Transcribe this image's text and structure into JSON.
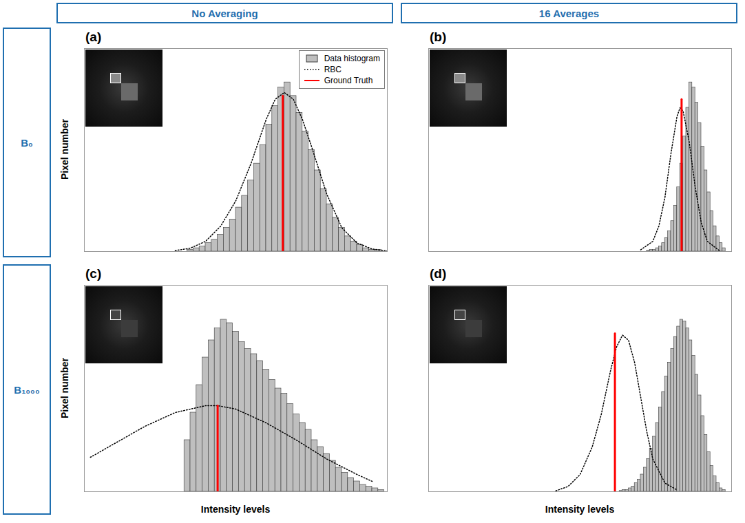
{
  "column_titles": [
    "No Averaging",
    "16 Averages"
  ],
  "row_titles": [
    "B₀",
    "B₁₀₀₀"
  ],
  "chart_data": [
    {
      "type": "histogram",
      "title": "(a)",
      "ylabel": "Pixel number",
      "xlim": [
        0,
        100
      ],
      "ylim": [
        0,
        120
      ],
      "tick_labels": false,
      "legend": "top-right",
      "series": [
        {
          "name": "Data histogram",
          "type": "bar",
          "color": "#bfbfbf",
          "bins": [
            34,
            36,
            38,
            40,
            42,
            44,
            46,
            48,
            50,
            52,
            54,
            56,
            58,
            60,
            62,
            64,
            66,
            68,
            70,
            72,
            74,
            76,
            78,
            80,
            82,
            84,
            86,
            88,
            90,
            92,
            94,
            96,
            98
          ],
          "values": [
            1,
            2,
            3,
            5,
            7,
            10,
            14,
            19,
            26,
            33,
            42,
            52,
            63,
            75,
            86,
            97,
            100,
            92,
            82,
            71,
            60,
            48,
            37,
            28,
            20,
            14,
            9,
            6,
            4,
            2,
            1,
            1
          ]
        },
        {
          "name": "RBC",
          "type": "line",
          "line_style": "dotted",
          "color": "#000000",
          "x": [
            30,
            35,
            40,
            45,
            50,
            55,
            60,
            63,
            66,
            69,
            72,
            75,
            80,
            85,
            90,
            95,
            100
          ],
          "values": [
            0.5,
            2,
            6,
            15,
            30,
            52,
            78,
            90,
            94,
            90,
            78,
            62,
            34,
            14,
            5,
            1.5,
            0.3
          ]
        },
        {
          "name": "Ground Truth",
          "type": "line",
          "line_style": "solid",
          "color": "#ff0000",
          "x": [
            65.5,
            65.5
          ],
          "values": [
            0,
            92
          ]
        }
      ]
    },
    {
      "type": "histogram",
      "title": "(b)",
      "xlim": [
        0,
        100
      ],
      "ylim": [
        0,
        120
      ],
      "tick_labels": false,
      "series": [
        {
          "type": "bar",
          "color": "#bfbfbf",
          "bins": [
            72,
            73,
            74,
            75,
            76,
            77,
            78,
            79,
            80,
            81,
            82,
            83,
            84,
            85,
            86,
            87,
            88,
            89,
            90,
            91,
            92,
            93,
            94,
            95,
            96,
            97,
            98
          ],
          "values": [
            0.5,
            1,
            1,
            2,
            3,
            5,
            8,
            12,
            18,
            27,
            38,
            52,
            68,
            85,
            100,
            97,
            88,
            76,
            62,
            48,
            35,
            24,
            15,
            9,
            5,
            2
          ]
        },
        {
          "type": "line",
          "line_style": "dotted",
          "color": "#000000",
          "x": [
            70,
            74,
            76,
            78,
            80,
            82,
            83,
            84,
            86,
            88,
            90,
            92,
            96
          ],
          "values": [
            1,
            6,
            15,
            32,
            58,
            80,
            85,
            83,
            65,
            38,
            17,
            6,
            0.5
          ]
        },
        {
          "type": "line",
          "line_style": "solid",
          "color": "#ff0000",
          "x": [
            83.5,
            83.5
          ],
          "values": [
            0,
            90
          ]
        }
      ]
    },
    {
      "type": "histogram",
      "title": "(c)",
      "ylabel": "Pixel number",
      "xlabel": "Intensity levels",
      "xlim": [
        0,
        100
      ],
      "ylim": [
        0,
        120
      ],
      "tick_labels": false,
      "series": [
        {
          "type": "bar",
          "color": "#bfbfbf",
          "bins": [
            33,
            35,
            37,
            39,
            41,
            43,
            45,
            47,
            49,
            51,
            53,
            55,
            57,
            59,
            61,
            63,
            65,
            67,
            69,
            71,
            73,
            75,
            77,
            79,
            81,
            83,
            85,
            87,
            89,
            91,
            93,
            95,
            97,
            99
          ],
          "values": [
            30,
            46,
            62,
            78,
            88,
            95,
            100,
            98,
            93,
            87,
            83,
            80,
            76,
            71,
            65,
            60,
            57,
            51,
            45,
            40,
            36,
            30,
            26,
            22,
            18,
            14,
            11,
            8,
            6,
            4,
            3,
            2,
            1
          ]
        },
        {
          "type": "line",
          "line_style": "dotted",
          "color": "#000000",
          "x": [
            2,
            10,
            20,
            30,
            40,
            44,
            50,
            60,
            70,
            80,
            90,
            95
          ],
          "values": [
            20,
            28,
            38,
            46,
            50,
            50,
            48,
            40,
            30,
            19,
            10,
            6
          ]
        },
        {
          "type": "line",
          "line_style": "solid",
          "color": "#ff0000",
          "x": [
            44,
            44
          ],
          "values": [
            0,
            50
          ]
        }
      ]
    },
    {
      "type": "histogram",
      "title": "(d)",
      "xlabel": "Intensity levels",
      "xlim": [
        0,
        100
      ],
      "ylim": [
        0,
        120
      ],
      "tick_labels": false,
      "series": [
        {
          "type": "bar",
          "color": "#bfbfbf",
          "bins": [
            63,
            64,
            65,
            66,
            67,
            68,
            69,
            70,
            71,
            72,
            73,
            74,
            75,
            76,
            77,
            78,
            79,
            80,
            81,
            82,
            83,
            84,
            85,
            86,
            87,
            88,
            89,
            90,
            91,
            92,
            93,
            94,
            95,
            96,
            97,
            98
          ],
          "values": [
            0.5,
            1,
            1,
            2,
            3,
            5,
            7,
            10,
            14,
            19,
            25,
            32,
            40,
            49,
            58,
            67,
            75,
            83,
            90,
            96,
            100,
            99,
            95,
            88,
            79,
            68,
            56,
            44,
            33,
            23,
            15,
            9,
            5,
            2,
            1
          ]
        },
        {
          "type": "line",
          "line_style": "dotted",
          "color": "#000000",
          "x": [
            42,
            46,
            50,
            54,
            57,
            60,
            62,
            64,
            66,
            68,
            70,
            72,
            74,
            78,
            82
          ],
          "values": [
            0.5,
            3,
            10,
            26,
            45,
            70,
            84,
            91,
            88,
            75,
            55,
            35,
            19,
            5,
            1
          ]
        },
        {
          "type": "line",
          "line_style": "solid",
          "color": "#ff0000",
          "x": [
            61.5,
            61.5
          ],
          "values": [
            0,
            92
          ]
        }
      ]
    }
  ]
}
